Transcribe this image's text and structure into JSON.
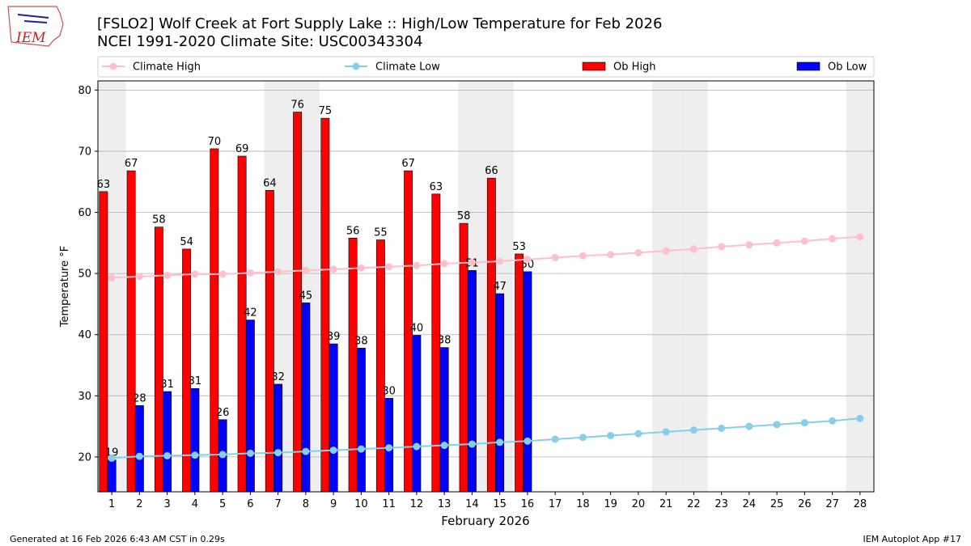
{
  "logo": "IEM",
  "footer_left": "Generated at 16 Feb 2026 6:43 AM CST in 0.29s",
  "footer_right": "IEM Autoplot App #17",
  "chart_data": {
    "type": "bar_line",
    "title": "[FSLO2] Wolf Creek at Fort Supply Lake :: High/Low Temperature for Feb 2026",
    "subtitle": "NCEI 1991-2020 Climate Site: USC00343304",
    "xlabel": "February 2026",
    "ylabel": "Temperature °F",
    "x": [
      1,
      2,
      3,
      4,
      5,
      6,
      7,
      8,
      9,
      10,
      11,
      12,
      13,
      14,
      15,
      16,
      17,
      18,
      19,
      20,
      21,
      22,
      23,
      24,
      25,
      26,
      27,
      28
    ],
    "xlim": [
      0.5,
      28.5
    ],
    "xticks": [
      1,
      2,
      3,
      4,
      5,
      6,
      7,
      8,
      9,
      10,
      11,
      12,
      13,
      14,
      15,
      16,
      17,
      18,
      19,
      20,
      21,
      22,
      23,
      24,
      25,
      26,
      27,
      28
    ],
    "ylim": [
      14.3,
      81.5
    ],
    "yticks": [
      20,
      30,
      40,
      50,
      60,
      70,
      80
    ],
    "grid": true,
    "shaded_days": [
      1,
      7,
      8,
      14,
      15,
      21,
      22,
      28
    ],
    "series": [
      {
        "name": "Climate High",
        "kind": "line",
        "color": "#ffc0cb",
        "values": [
          49.3,
          49.5,
          49.7,
          49.9,
          49.9,
          50.1,
          50.3,
          50.5,
          50.7,
          50.9,
          51.1,
          51.3,
          51.6,
          51.8,
          52.0,
          52.3,
          52.6,
          52.9,
          53.1,
          53.4,
          53.7,
          54.0,
          54.4,
          54.7,
          55.0,
          55.3,
          55.7,
          56.0
        ]
      },
      {
        "name": "Climate Low",
        "kind": "line",
        "color": "#87ceeb",
        "values": [
          19.8,
          20.1,
          20.2,
          20.3,
          20.4,
          20.6,
          20.7,
          20.9,
          21.1,
          21.3,
          21.5,
          21.7,
          21.9,
          22.1,
          22.4,
          22.6,
          22.9,
          23.2,
          23.5,
          23.8,
          24.1,
          24.4,
          24.7,
          25.0,
          25.3,
          25.6,
          25.9,
          26.3
        ]
      },
      {
        "name": "Ob High",
        "kind": "bar",
        "color": "#ff0000",
        "values": [
          63.4,
          66.8,
          57.6,
          54.0,
          70.4,
          69.2,
          63.6,
          76.4,
          75.4,
          55.8,
          55.5,
          66.8,
          63.0,
          58.2,
          65.6,
          53.2,
          null,
          null,
          null,
          null,
          null,
          null,
          null,
          null,
          null,
          null,
          null,
          null
        ],
        "value_labels": [
          "63",
          "67",
          "58",
          "54",
          "70",
          "69",
          "64",
          "76",
          "75",
          "56",
          "55",
          "67",
          "63",
          "58",
          "66",
          "53",
          null,
          null,
          null,
          null,
          null,
          null,
          null,
          null,
          null,
          null,
          null,
          null
        ]
      },
      {
        "name": "Ob Low",
        "kind": "bar",
        "color": "#0000ff",
        "values": [
          19.5,
          28.4,
          30.7,
          31.2,
          26.1,
          42.4,
          31.9,
          45.2,
          38.5,
          37.8,
          29.6,
          39.9,
          37.9,
          50.5,
          46.7,
          50.3,
          null,
          null,
          null,
          null,
          null,
          null,
          null,
          null,
          null,
          null,
          null,
          null
        ],
        "value_labels": [
          "19",
          "28",
          "31",
          "31",
          "26",
          "42",
          "32",
          "45",
          "39",
          "38",
          "30",
          "40",
          "38",
          "51",
          "47",
          "50",
          null,
          null,
          null,
          null,
          null,
          null,
          null,
          null,
          null,
          null,
          null,
          null
        ]
      }
    ]
  }
}
